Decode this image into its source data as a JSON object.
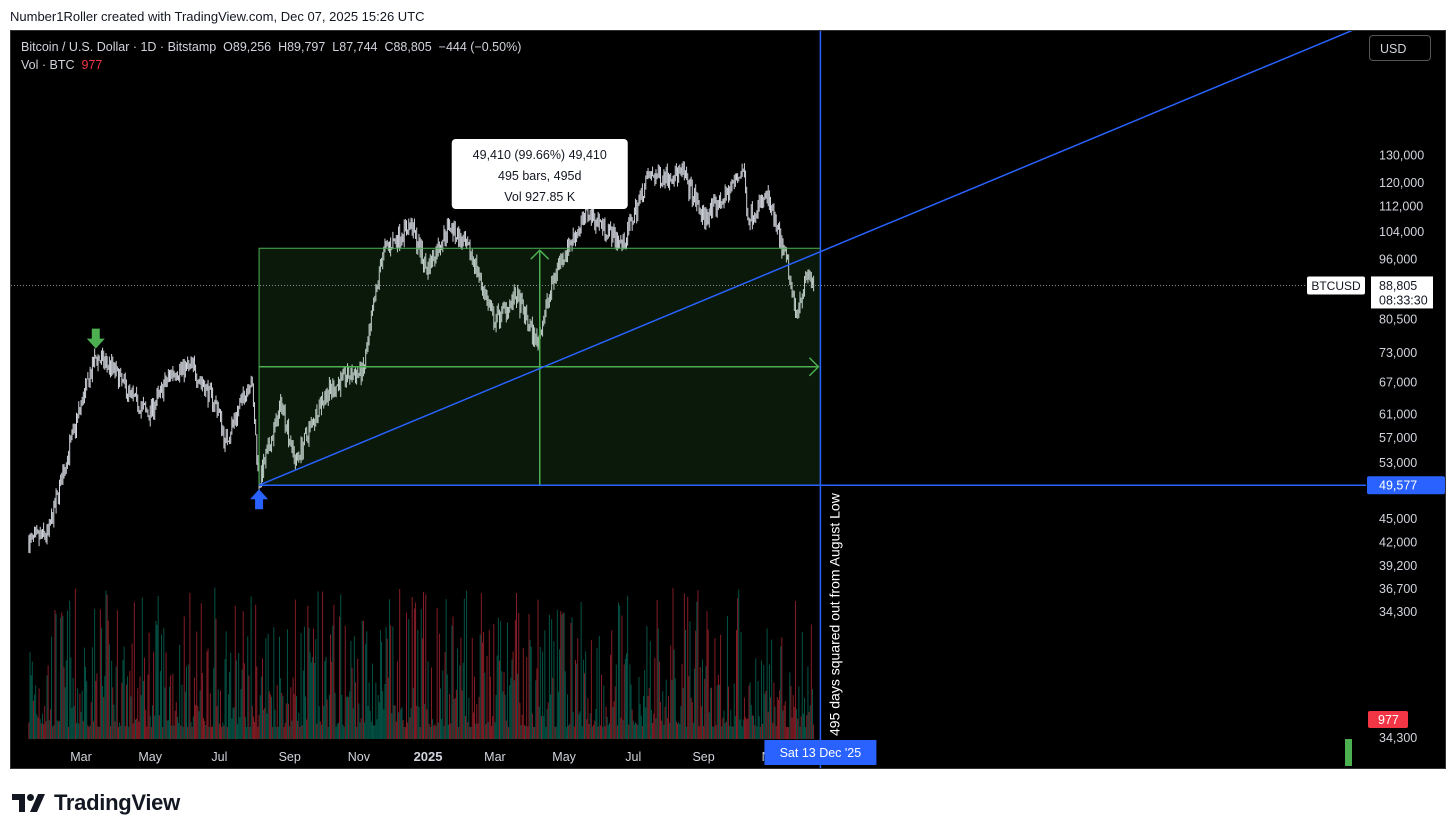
{
  "header": {
    "attribution": "Number1Roller created with TradingView.com, Dec 07, 2025 15:26 UTC"
  },
  "legend": {
    "symbol": "Bitcoin / U.S. Dollar · 1D · Bitstamp",
    "open": "O89,256",
    "high": "H89,797",
    "low": "L87,744",
    "close": "C88,805",
    "change": "−444 (−0.50%)",
    "vol_label": "Vol · BTC",
    "vol_value": "977"
  },
  "currency_button": "USD",
  "brand": "TradingView",
  "colors": {
    "background": "#000000",
    "accent_blue": "#2962ff",
    "range_green": "#4caf50",
    "candle": "#d1d4dc",
    "volume_down": "#f23645",
    "volume_up": "#089981"
  },
  "chart_data": {
    "type": "candlestick",
    "symbol": "BTCUSD",
    "timeframe": "1D",
    "yaxis": {
      "scale": "log",
      "ticks": [
        130000,
        120000,
        112000,
        104000,
        96000,
        80500,
        73000,
        67000,
        61000,
        57000,
        53000,
        45000,
        42000,
        39200,
        36700,
        34300
      ]
    },
    "xaxis": {
      "ticks": [
        "Mar",
        "May",
        "Jul",
        "Sep",
        "Nov",
        "2025",
        "Mar",
        "May",
        "Jul",
        "Sep",
        "Nov"
      ]
    },
    "price_path": [
      [
        "2024-01-15",
        42000
      ],
      [
        "2024-02-01",
        43000
      ],
      [
        "2024-02-15",
        52000
      ],
      [
        "2024-02-29",
        62000
      ],
      [
        "2024-03-14",
        72000
      ],
      [
        "2024-03-28",
        70000
      ],
      [
        "2024-04-15",
        64000
      ],
      [
        "2024-04-30",
        61000
      ],
      [
        "2024-05-20",
        69000
      ],
      [
        "2024-06-07",
        70000
      ],
      [
        "2024-06-30",
        62000
      ],
      [
        "2024-07-06",
        56000
      ],
      [
        "2024-07-29",
        68000
      ],
      [
        "2024-08-05",
        50000
      ],
      [
        "2024-08-25",
        63000
      ],
      [
        "2024-09-06",
        53000
      ],
      [
        "2024-09-30",
        64000
      ],
      [
        "2024-10-20",
        68000
      ],
      [
        "2024-11-05",
        69000
      ],
      [
        "2024-11-22",
        98000
      ],
      [
        "2024-12-17",
        106000
      ],
      [
        "2024-12-31",
        93000
      ],
      [
        "2025-01-20",
        106000
      ],
      [
        "2025-02-10",
        96000
      ],
      [
        "2025-02-28",
        80000
      ],
      [
        "2025-03-20",
        86000
      ],
      [
        "2025-04-07",
        75000
      ],
      [
        "2025-04-25",
        94000
      ],
      [
        "2025-05-22",
        110000
      ],
      [
        "2025-06-22",
        100000
      ],
      [
        "2025-07-14",
        122000
      ],
      [
        "2025-08-14",
        123000
      ],
      [
        "2025-09-01",
        108000
      ],
      [
        "2025-09-20",
        115000
      ],
      [
        "2025-10-06",
        125000
      ],
      [
        "2025-10-10",
        108000
      ],
      [
        "2025-10-27",
        115000
      ],
      [
        "2025-11-14",
        94000
      ],
      [
        "2025-11-21",
        82000
      ],
      [
        "2025-12-02",
        92000
      ],
      [
        "2025-12-07",
        88805
      ]
    ],
    "current": {
      "label": "BTCUSD",
      "price": "88,805",
      "countdown": "08:33:30"
    },
    "volume_last": "977",
    "annotations": {
      "markers": [
        {
          "type": "arrow-down",
          "date": "2024-03-14",
          "price": 73000,
          "color": "#4caf50"
        },
        {
          "type": "arrow-up",
          "date": "2024-08-05",
          "price": 49577,
          "color": "#2962ff"
        }
      ],
      "horizontal_line": {
        "price": 49577,
        "label": "49,577"
      },
      "vertical_line": {
        "date": "2025-12-13",
        "label": "Sat 13 Dec '25",
        "note": "495 days squared out from August Low"
      },
      "trend_line": {
        "from": [
          "2024-08-05",
          49577
        ],
        "to": [
          "2025-12-13",
          98000
        ]
      },
      "price_range": {
        "from": [
          "2024-08-05",
          49577
        ],
        "to": [
          "2025-12-13",
          98987
        ],
        "label_line1": "49,410 (99.66%) 49,410",
        "label_line2": "495 bars, 495d",
        "label_line3": "Vol 927.85 K"
      }
    }
  }
}
